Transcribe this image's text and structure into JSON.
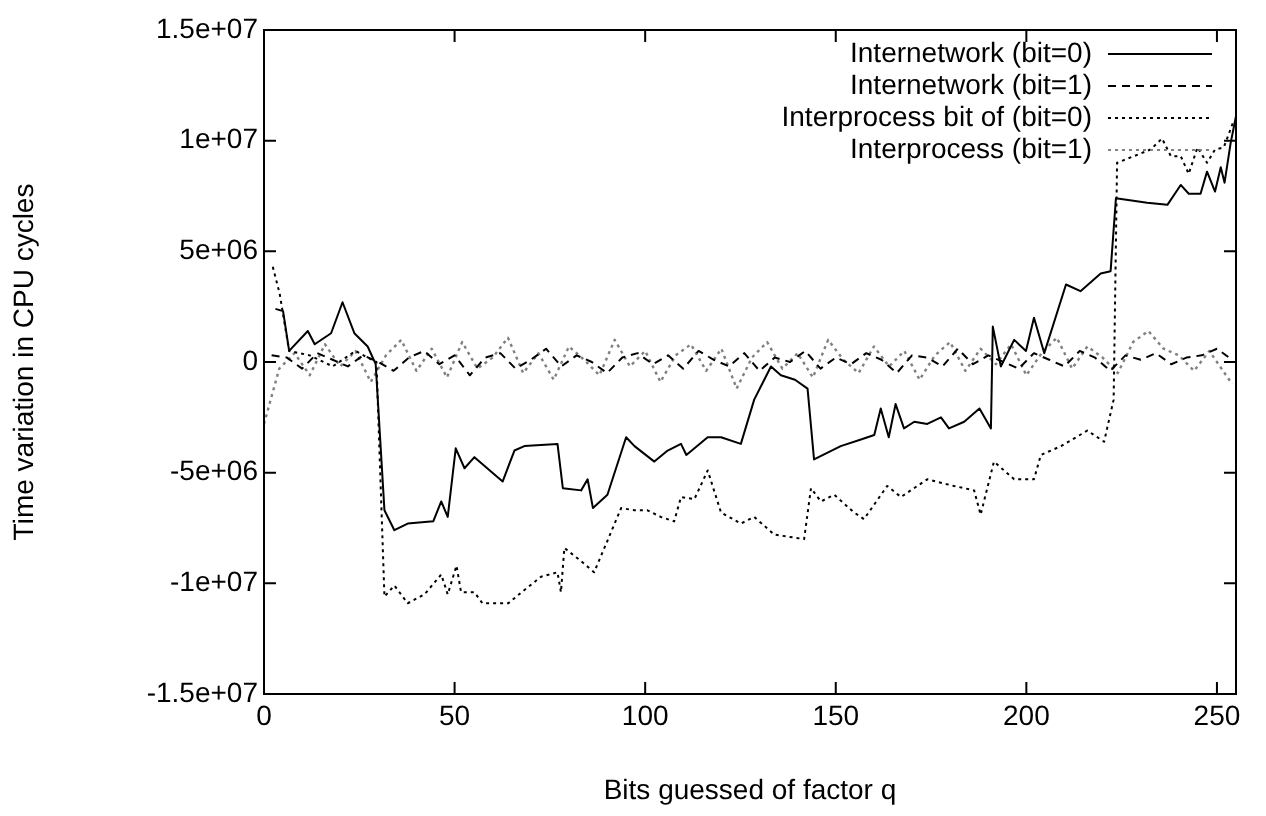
{
  "chart_data": {
    "type": "line",
    "xlabel": "Bits guessed of factor q",
    "ylabel": "Time variation in CPU cycles",
    "xlim": [
      0,
      255
    ],
    "xticks": [
      0,
      50,
      100,
      150,
      200,
      250
    ],
    "ylim": [
      -15000000,
      15000000
    ],
    "yticks": [
      {
        "value": -15000000,
        "label": "-1.5e+07"
      },
      {
        "value": -10000000,
        "label": "-1e+07"
      },
      {
        "value": -5000000,
        "label": "-5e+06"
      },
      0,
      {
        "value": 5000000,
        "label": "5e+06"
      },
      {
        "value": 10000000,
        "label": "1e+07"
      },
      {
        "value": 15000000,
        "label": "1.5e+07"
      }
    ],
    "grid": false,
    "legend": "top right",
    "marker": "none",
    "series": [
      {
        "name": "Internetwork (bit=0)",
        "color": "#000000",
        "line_style": "solid",
        "x": [
          3,
          5,
          6.6,
          11.5,
          13.3,
          17.6,
          20.6,
          23.7,
          27.2,
          29.3,
          31.6,
          34.2,
          37.7,
          44.4,
          46.5,
          48.2,
          50.3,
          52.6,
          55.2,
          62.6,
          65.7,
          68.3,
          77,
          78.4,
          83.2,
          84.9,
          86.3,
          90.1,
          95,
          97.2,
          102.4,
          105.9,
          109.4,
          110.8,
          116.4,
          119.9,
          125.1,
          128.6,
          133,
          135.6,
          139.3,
          142.6,
          144.3,
          151.3,
          156.6,
          160.1,
          161.8,
          163.9,
          165.7,
          167.9,
          170.6,
          174,
          177.6,
          179.7,
          183.7,
          187.7,
          190.7,
          191.2,
          193.3,
          196.8,
          199.9,
          202,
          204.7,
          210.4,
          214.2,
          219.5,
          222.1,
          223.5,
          231.7,
          237,
          240.5,
          242.6,
          245.7,
          247.4,
          249.5,
          251,
          252,
          253.6,
          255
        ],
        "values": [
          2400000,
          2300000,
          500000,
          1400000,
          800000,
          1300000,
          2700000,
          1300000,
          700000,
          -100000,
          -6700000,
          -7600000,
          -7300000,
          -7200000,
          -6300000,
          -7000000,
          -3900000,
          -4800000,
          -4300000,
          -5400000,
          -4000000,
          -3800000,
          -3700000,
          -5700000,
          -5800000,
          -5300000,
          -6600000,
          -6000000,
          -3400000,
          -3800000,
          -4500000,
          -4000000,
          -3700000,
          -4200000,
          -3400000,
          -3400000,
          -3700000,
          -1700000,
          -200000,
          -600000,
          -800000,
          -1200000,
          -4400000,
          -3800000,
          -3500000,
          -3300000,
          -2100000,
          -3400000,
          -1900000,
          -3000000,
          -2700000,
          -2800000,
          -2500000,
          -3000000,
          -2700000,
          -2100000,
          -3000000,
          1600000,
          -200000,
          1000000,
          500000,
          2000000,
          400000,
          3500000,
          3200000,
          4000000,
          4100000,
          7400000,
          7200000,
          7100000,
          8000000,
          7600000,
          7600000,
          8600000,
          7700000,
          8800000,
          8100000,
          9900000,
          11100000
        ]
      },
      {
        "name": "Internetwork (bit=1)",
        "color": "#000000",
        "line_style": "dashed",
        "x": [
          2,
          6,
          10,
          14,
          18,
          22,
          26,
          30,
          34,
          38,
          42,
          46,
          50,
          54,
          58,
          62,
          66,
          70,
          74,
          78,
          82,
          86,
          90,
          94,
          98,
          102,
          106,
          110,
          114,
          118,
          122,
          126,
          130,
          134,
          138,
          142,
          146,
          150,
          154,
          158,
          162,
          166,
          170,
          174,
          178,
          182,
          186,
          190,
          194,
          198,
          202,
          206,
          210,
          214,
          218,
          222,
          226,
          230,
          234,
          238,
          242,
          246,
          250,
          254
        ],
        "values": [
          300000,
          200000,
          -300000,
          400000,
          100000,
          -200000,
          300000,
          0,
          -400000,
          200000,
          500000,
          -100000,
          300000,
          -600000,
          200000,
          400000,
          -300000,
          100000,
          600000,
          -200000,
          300000,
          0,
          -500000,
          200000,
          400000,
          -100000,
          300000,
          -300000,
          500000,
          100000,
          -200000,
          400000,
          -400000,
          200000,
          0,
          500000,
          -300000,
          200000,
          -100000,
          400000,
          100000,
          -500000,
          300000,
          200000,
          -200000,
          600000,
          -100000,
          300000,
          0,
          -300000,
          400000,
          100000,
          -200000,
          500000,
          200000,
          -400000,
          300000,
          100000,
          400000,
          -100000,
          200000,
          300000,
          600000,
          100000
        ]
      },
      {
        "name": "Interprocess bit of (bit=0)",
        "color": "#000000",
        "line_style": "dotted",
        "x": [
          2.3,
          4.1,
          6.6,
          12,
          18,
          24,
          27.2,
          29.5,
          31.6,
          34.2,
          37.7,
          42.1,
          46.5,
          48.2,
          50.5,
          51.7,
          55.2,
          57.3,
          64.1,
          67.6,
          72.7,
          77,
          77.9,
          78.8,
          83.2,
          86.6,
          89.3,
          93.7,
          97.2,
          100.6,
          104.1,
          107.6,
          109.4,
          112.9,
          116.4,
          119.9,
          125.1,
          128.6,
          133.9,
          141.7,
          143.5,
          146.1,
          149.6,
          154.8,
          157.4,
          163.5,
          167.1,
          174,
          181,
          186.3,
          188,
          191.5,
          196.8,
          202,
          203.8,
          209.1,
          216,
          220.4,
          222.9,
          223.8,
          228.2,
          232.6,
          235.6,
          237.9,
          240.5,
          242.6,
          244.9,
          247.4,
          249.5,
          251.8,
          254.4
        ],
        "values": [
          4300000,
          3100000,
          500000,
          300000,
          -200000,
          500000,
          200000,
          0,
          -10600000,
          -10100000,
          -10900000,
          -10500000,
          -9600000,
          -10500000,
          -9200000,
          -10400000,
          -10400000,
          -10900000,
          -10900000,
          -10400000,
          -9700000,
          -9500000,
          -10400000,
          -8400000,
          -9000000,
          -9500000,
          -8400000,
          -6600000,
          -6700000,
          -6700000,
          -7000000,
          -7200000,
          -6100000,
          -6200000,
          -4900000,
          -6800000,
          -7300000,
          -7000000,
          -7800000,
          -8000000,
          -5700000,
          -6300000,
          -6000000,
          -6800000,
          -7100000,
          -5600000,
          -6100000,
          -5300000,
          -5600000,
          -5800000,
          -6900000,
          -4500000,
          -5300000,
          -5300000,
          -4200000,
          -3800000,
          -3100000,
          -3600000,
          -1700000,
          9000000,
          9300000,
          9600000,
          10100000,
          9300000,
          9300000,
          8500000,
          9700000,
          9000000,
          9600000,
          9700000,
          10900000
        ]
      },
      {
        "name": "Interprocess (bit=1)",
        "color": "#808080",
        "line_style": "dotted",
        "x": [
          0,
          4,
          8,
          12,
          16,
          20,
          24,
          28,
          32,
          36,
          40,
          44,
          48,
          52,
          56,
          60,
          64,
          68,
          72,
          76,
          80,
          84,
          88,
          92,
          96,
          100,
          104,
          108,
          112,
          116,
          120,
          124,
          128,
          132,
          136,
          140,
          144,
          148,
          152,
          156,
          160,
          164,
          168,
          172,
          176,
          180,
          184,
          188,
          192,
          196,
          200,
          204,
          208,
          212,
          216,
          220,
          224,
          228,
          232,
          236,
          240,
          244,
          248,
          254
        ],
        "values": [
          -2800000,
          -300000,
          400000,
          -600000,
          800000,
          -200000,
          500000,
          -900000,
          300000,
          1000000,
          -400000,
          600000,
          -700000,
          900000,
          -300000,
          200000,
          1100000,
          -500000,
          400000,
          -800000,
          700000,
          100000,
          -600000,
          1000000,
          -200000,
          500000,
          -900000,
          300000,
          800000,
          -400000,
          600000,
          -1200000,
          200000,
          900000,
          -300000,
          400000,
          -700000,
          1000000,
          100000,
          -500000,
          700000,
          -200000,
          500000,
          -800000,
          300000,
          900000,
          -400000,
          600000,
          -100000,
          800000,
          -600000,
          400000,
          1100000,
          -300000,
          700000,
          200000,
          -500000,
          900000,
          1400000,
          600000,
          300000,
          -400000,
          500000,
          -1000000
        ]
      }
    ]
  }
}
